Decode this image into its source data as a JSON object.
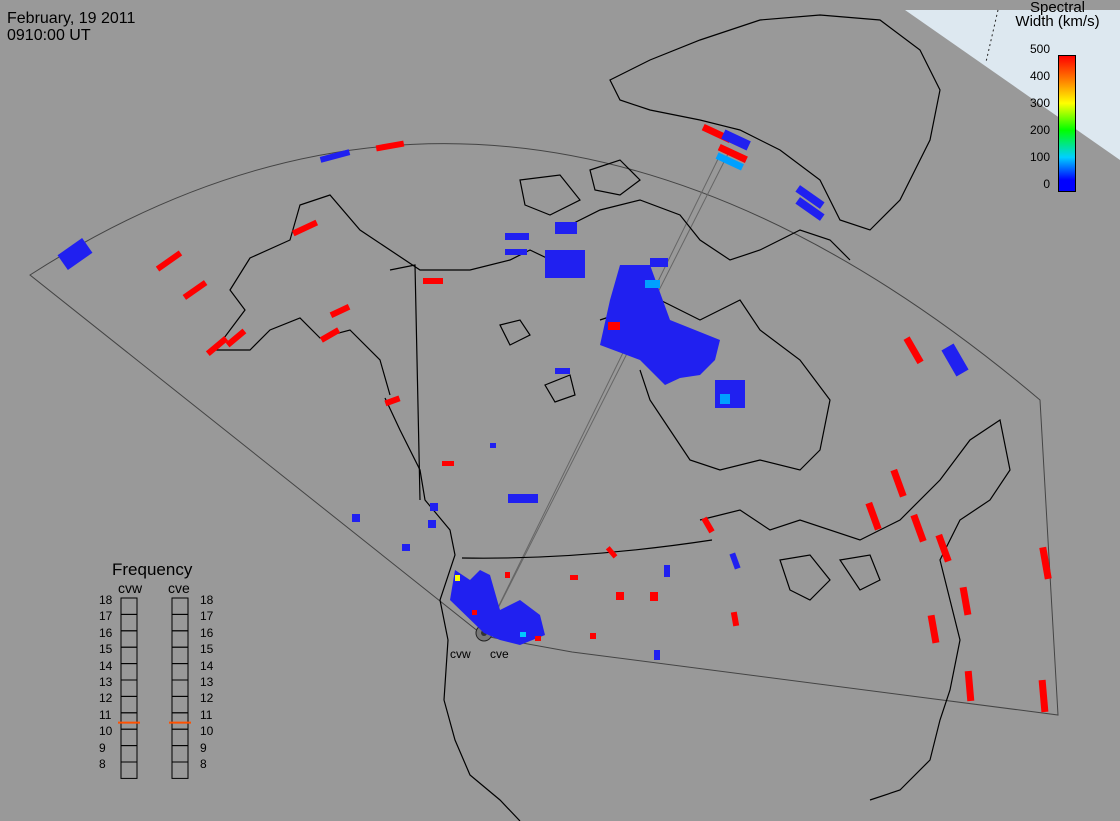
{
  "header": {
    "date": "February, 19 2011",
    "time": "0910:00 UT"
  },
  "colorbar": {
    "title_line1": "Spectral",
    "title_line2": "Width (km/s)",
    "ticks": [
      "500",
      "400",
      "300",
      "200",
      "100",
      "0"
    ],
    "min": 0,
    "max": 500,
    "colors": [
      "#0000ff",
      "#00c8ff",
      "#00ff00",
      "#ffff00",
      "#ff0000"
    ]
  },
  "frequency": {
    "title": "Frequency",
    "radars": [
      "cvw",
      "cve"
    ],
    "ticks": [
      "18",
      "17",
      "16",
      "15",
      "14",
      "13",
      "12",
      "11",
      "10",
      "9",
      "8"
    ],
    "values_mhz": [
      10.9,
      10.9
    ],
    "marker_color": "#ff5000"
  },
  "sites": [
    "cvw",
    "cve"
  ]
}
